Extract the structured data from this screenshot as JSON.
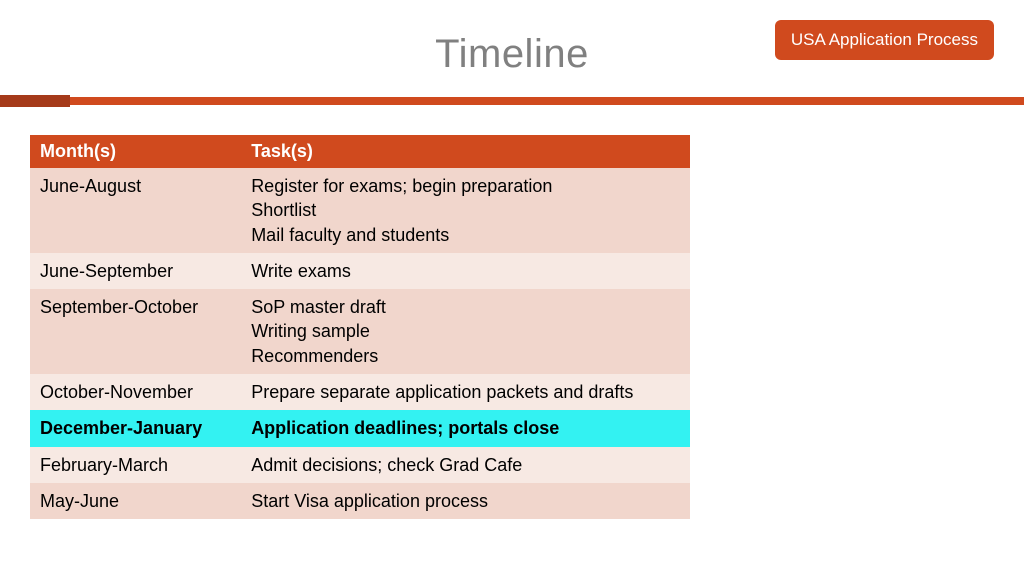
{
  "badge": {
    "text": "USA Application Process",
    "bg": "#d04a1e",
    "fg": "#ffffff"
  },
  "title": {
    "text": "Timeline",
    "color": "#808080"
  },
  "bar": {
    "left_color": "#a53a1a",
    "right_color": "#d04a1e"
  },
  "table": {
    "header_bg": "#d04a1e",
    "header_fg": "#ffffff",
    "columns": [
      "Month(s)",
      "Task(s)"
    ],
    "rows": [
      {
        "month": "June-August",
        "task": "Register for exams; begin preparation\nShortlist\nMail faculty and students",
        "bg": "#f1d6cc",
        "fg": "#000000",
        "bold": false
      },
      {
        "month": "June-September",
        "task": "Write exams",
        "bg": "#f7e9e3",
        "fg": "#000000",
        "bold": false
      },
      {
        "month": "September-October",
        "task": "SoP master draft\nWriting sample\nRecommenders",
        "bg": "#f1d6cc",
        "fg": "#000000",
        "bold": false
      },
      {
        "month": "October-November",
        "task": "Prepare separate application packets and drafts",
        "bg": "#f7e9e3",
        "fg": "#000000",
        "bold": false
      },
      {
        "month": "December-January",
        "task": "Application deadlines; portals close",
        "bg": "#33f2f2",
        "fg": "#000000",
        "bold": true
      },
      {
        "month": "February-March",
        "task": "Admit decisions; check Grad Cafe",
        "bg": "#f7e9e3",
        "fg": "#000000",
        "bold": false
      },
      {
        "month": "May-June",
        "task": "Start Visa application process",
        "bg": "#f1d6cc",
        "fg": "#000000",
        "bold": false
      }
    ]
  }
}
